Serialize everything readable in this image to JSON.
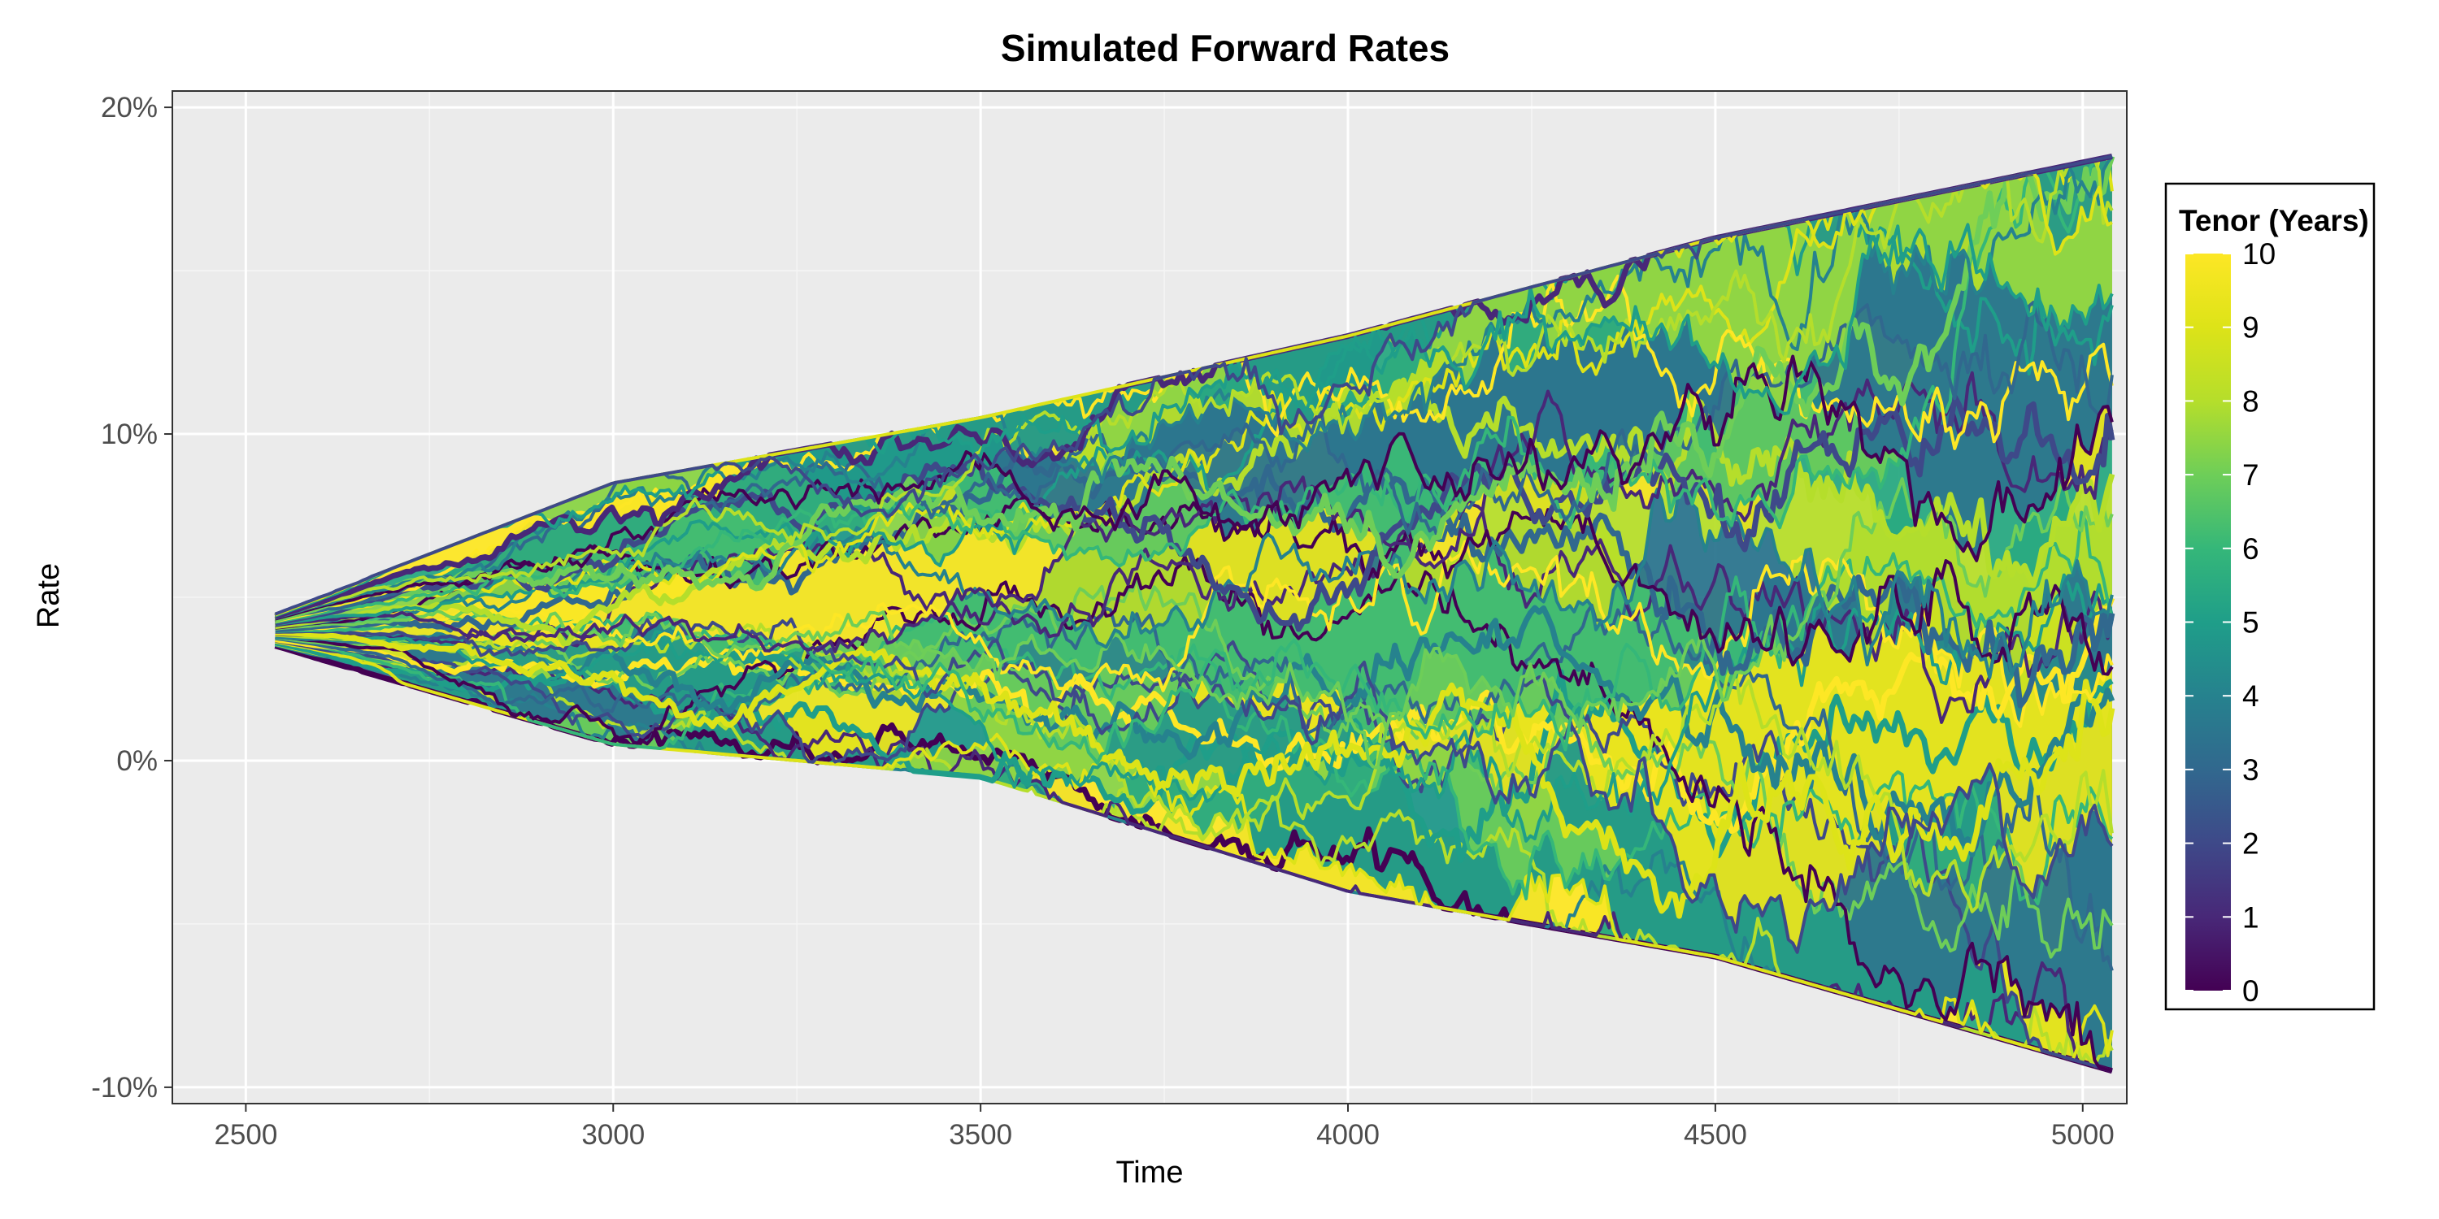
{
  "chart_data": {
    "type": "line",
    "title": "Simulated Forward Rates",
    "xlabel": "Time",
    "ylabel": "Rate",
    "x_range": [
      2540,
      5040
    ],
    "xlim": [
      2400,
      5060
    ],
    "ylim": [
      -0.105,
      0.205
    ],
    "x_ticks": [
      2500,
      3000,
      3500,
      4000,
      4500,
      5000
    ],
    "x_tick_labels": [
      "2500",
      "3000",
      "3500",
      "4000",
      "4500",
      "5000"
    ],
    "y_ticks": [
      -0.1,
      0.0,
      0.1,
      0.2
    ],
    "y_tick_labels": [
      "-10%",
      "0%",
      "10%",
      "20%"
    ],
    "initial_rate": 0.04,
    "envelope": {
      "x": [
        2540,
        3000,
        3500,
        4000,
        4500,
        5040
      ],
      "upper": [
        0.045,
        0.085,
        0.105,
        0.13,
        0.16,
        0.185
      ],
      "lower": [
        0.035,
        0.005,
        -0.005,
        -0.04,
        -0.06,
        -0.095
      ]
    },
    "num_paths": 40,
    "color_scale": "viridis",
    "grid": true,
    "legend": {
      "title": "Tenor (Years)",
      "position": "right",
      "min": 0,
      "max": 10,
      "labels": [
        "0",
        "1",
        "2",
        "3",
        "4",
        "5",
        "6",
        "7",
        "8",
        "9",
        "10"
      ]
    }
  },
  "colors": {
    "panel_background": "#ebebeb",
    "grid_major": "#ffffff",
    "grid_minor": "#f5f5f5"
  }
}
